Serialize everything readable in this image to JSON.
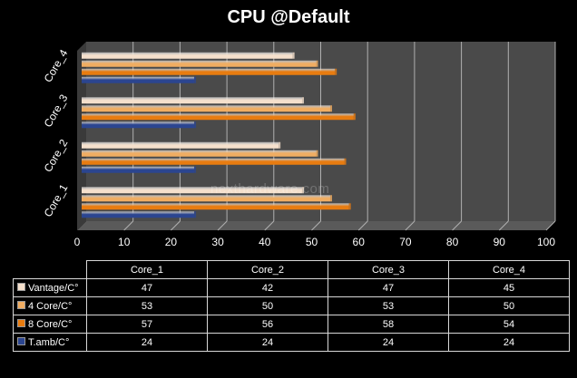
{
  "chart_data": {
    "type": "bar",
    "orientation": "horizontal",
    "title": "CPU @Default",
    "categories": [
      "Core_1",
      "Core_2",
      "Core_3",
      "Core_4"
    ],
    "series": [
      {
        "name": "Vantage/C°",
        "values": [
          47,
          42,
          47,
          45
        ],
        "color": "#f5e0cc"
      },
      {
        "name": "4 Core/C°",
        "values": [
          53,
          50,
          53,
          50
        ],
        "color": "#f0ad62"
      },
      {
        "name": "8 Core/C°",
        "values": [
          57,
          56,
          58,
          54
        ],
        "color": "#e87c10"
      },
      {
        "name": "T.amb/C°",
        "values": [
          24,
          24,
          24,
          24
        ],
        "color": "#2b4590"
      }
    ],
    "xlim": [
      0,
      100
    ],
    "x_ticks": [
      0,
      10,
      20,
      30,
      40,
      50,
      60,
      70,
      80,
      90,
      100
    ],
    "grid": true,
    "xlabel": "",
    "ylabel": "",
    "legend": "data table below chart"
  },
  "watermark": "nexthardware.com",
  "colors": {
    "background": "#000000",
    "plot_area": "#4a4a4a",
    "gridline": "#b0b0b0"
  }
}
